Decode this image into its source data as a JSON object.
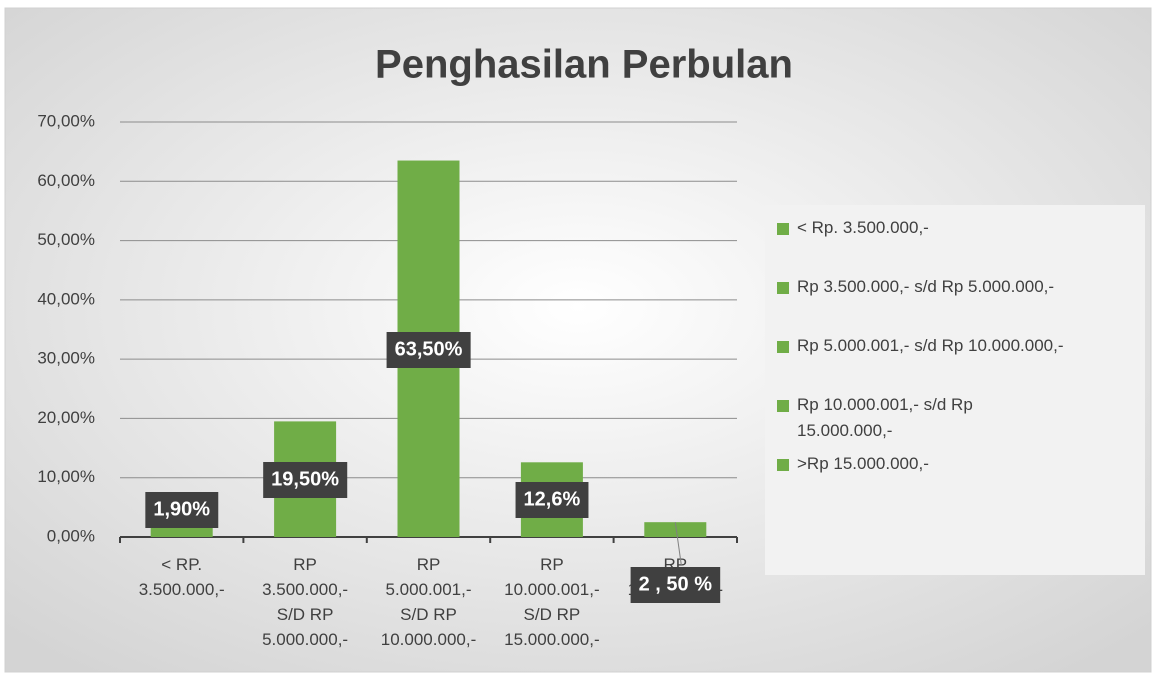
{
  "chart_data": {
    "type": "bar",
    "title": "Penghasilan Perbulan",
    "categories": [
      "< RP.\n3.500.000,-",
      "RP\n3.500.000,-\nS/D  RP\n5.000.000,-",
      "RP\n5.000.001,-\nS/D RP\n10.000.000,-",
      "RP\n10.000.001,-\nS/D  RP\n15.000.000,-",
      "RP\n15.000.000,-"
    ],
    "values": [
      1.9,
      19.5,
      63.5,
      12.6,
      2.5
    ],
    "value_labels": [
      "1,90%",
      "19,50%",
      "63,50%",
      "12,6%",
      "2 , 50 %"
    ],
    "color": "#70ad47",
    "legend_entries": [
      "< Rp. 3.500.000,-",
      "Rp 3.500.000,-  s/d  Rp 5.000.000,-",
      "Rp 5.000.001,- s/d Rp 10.000.000,-",
      "Rp 10.000.001,- s/d  Rp\n15.000.000,-",
      ">Rp 15.000.000,-"
    ],
    "legend_position": "right",
    "ylim": [
      0,
      70
    ],
    "yticks": [
      {
        "value": 0,
        "label": "0,00%"
      },
      {
        "value": 10,
        "label": "10,00%"
      },
      {
        "value": 20,
        "label": "20,00%"
      },
      {
        "value": 30,
        "label": "30,00%"
      },
      {
        "value": 40,
        "label": "40,00%"
      },
      {
        "value": 50,
        "label": "50,00%"
      },
      {
        "value": 60,
        "label": "60,00%"
      },
      {
        "value": 70,
        "label": "70,00%"
      }
    ],
    "grid": true
  }
}
